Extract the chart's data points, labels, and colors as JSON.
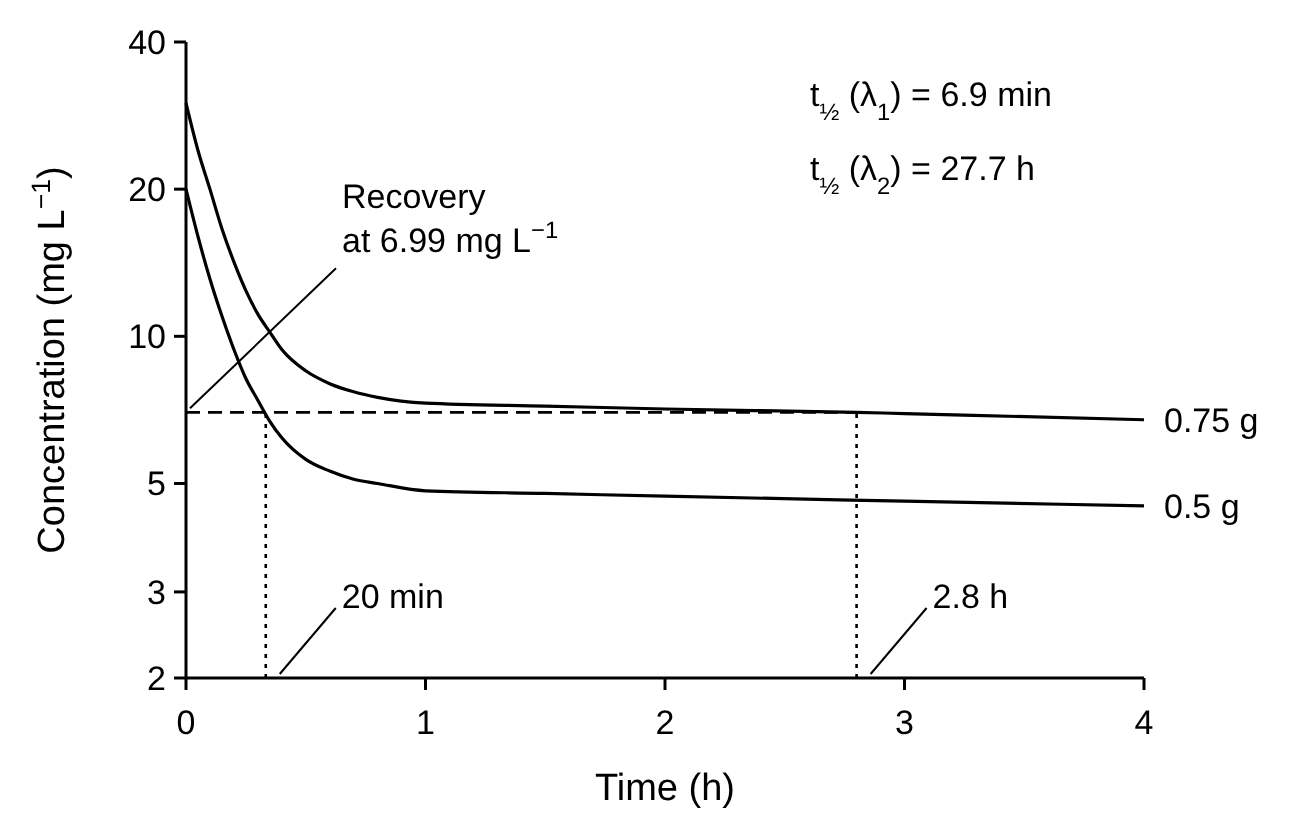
{
  "chart_data": {
    "type": "line",
    "xlabel": "Time (h)",
    "ylabel": "Concentration (mg L$^{−1}$)",
    "log": "y",
    "xlim": [
      0,
      4
    ],
    "xticks": [
      0,
      1,
      2,
      3,
      4
    ],
    "ylim": [
      2,
      40
    ],
    "yticks": [
      2,
      3,
      5,
      10,
      20,
      40
    ],
    "grid": false,
    "marker": "none",
    "line_style": "solid",
    "series": [
      {
        "name": "0.75 g",
        "color": "#000000",
        "x": [
          0,
          0.05,
          0.1,
          0.15,
          0.2,
          0.25,
          0.3,
          0.35,
          0.4,
          0.5,
          0.6,
          0.7,
          0.8,
          1,
          1.5,
          2,
          2.8,
          3,
          4
        ],
        "values": [
          30,
          24,
          20,
          16.6,
          14.2,
          12.4,
          11.1,
          10.2,
          9.4,
          8.5,
          8.0,
          7.7,
          7.5,
          7.3,
          7.2,
          7.1,
          6.99,
          6.95,
          6.75
        ]
      },
      {
        "name": "0.5 g",
        "color": "#000000",
        "x": [
          0,
          0.05,
          0.1,
          0.15,
          0.2,
          0.25,
          0.3,
          0.35,
          0.4,
          0.5,
          0.6,
          0.7,
          0.8,
          1,
          1.5,
          2,
          3,
          4
        ],
        "values": [
          20,
          16,
          13.1,
          11,
          9.4,
          8.2,
          7.4,
          6.7,
          6.2,
          5.6,
          5.3,
          5.1,
          5.0,
          4.83,
          4.77,
          4.71,
          4.6,
          4.5
        ]
      }
    ],
    "ref_lines": [
      {
        "axis": "y",
        "value": 6.99,
        "line_style": "dashed",
        "color": "#000000"
      },
      {
        "axis": "x",
        "value": 0.333,
        "line_style": "dotted",
        "color": "#000000"
      },
      {
        "axis": "x",
        "value": 2.8,
        "line_style": "dotted",
        "color": "#000000"
      }
    ],
    "annotations": [
      {
        "text": "Recovery\nat 6.99 mg L$^{−1}$",
        "x": 0,
        "y": 6.99
      },
      {
        "text": "20 min",
        "x": 0.333,
        "y": 2
      },
      {
        "text": "2.8 h",
        "x": 2.8,
        "y": 2
      },
      "t$_{½}$ (λ$_{1}$) = 6.9 min",
      "t$_{½}$ (λ$_{2}$) = 27.7 h"
    ]
  }
}
